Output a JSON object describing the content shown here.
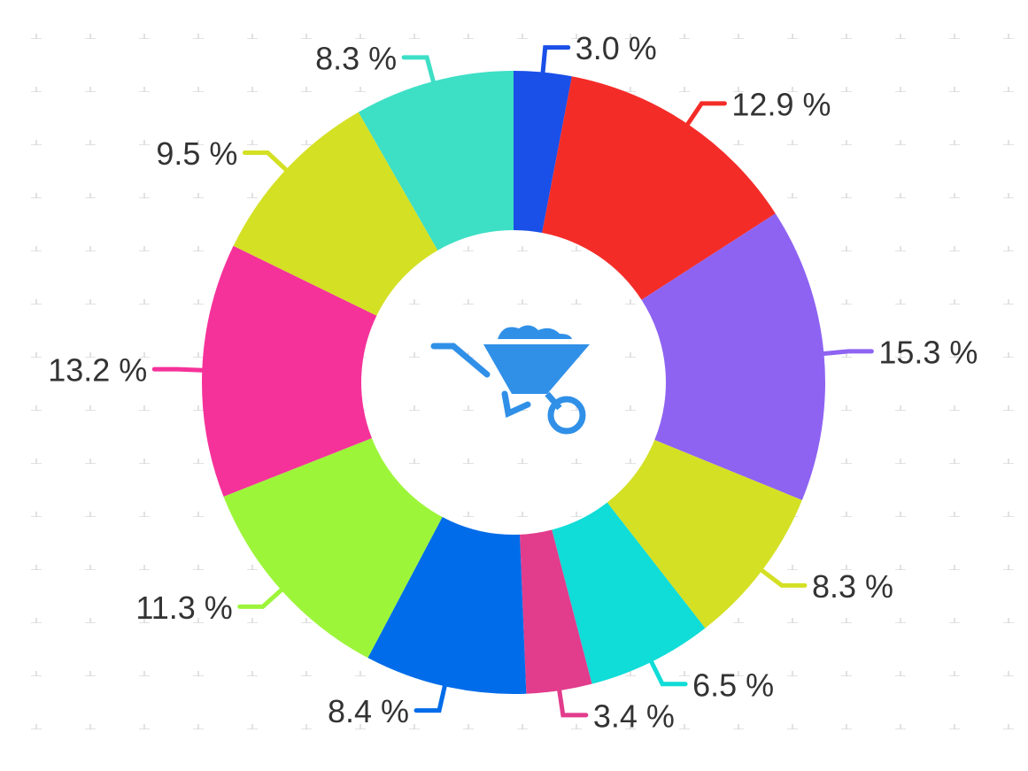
{
  "chart_data": {
    "type": "donut",
    "values": [
      3.0,
      12.9,
      15.3,
      8.3,
      6.5,
      3.4,
      8.4,
      11.3,
      13.2,
      9.5,
      8.3
    ],
    "value_labels": [
      "3.0 %",
      "12.9 %",
      "15.3 %",
      "8.3 %",
      "6.5 %",
      "3.4 %",
      "8.4 %",
      "11.3 %",
      "13.2 %",
      "9.5 %",
      "8.3 %"
    ],
    "colors": [
      "#1a4fe8",
      "#f42c28",
      "#8e63f2",
      "#d4e024",
      "#10dcd8",
      "#e23c8c",
      "#006ce9",
      "#9df53a",
      "#f5329a",
      "#d4e024",
      "#3ddfc5"
    ]
  }
}
